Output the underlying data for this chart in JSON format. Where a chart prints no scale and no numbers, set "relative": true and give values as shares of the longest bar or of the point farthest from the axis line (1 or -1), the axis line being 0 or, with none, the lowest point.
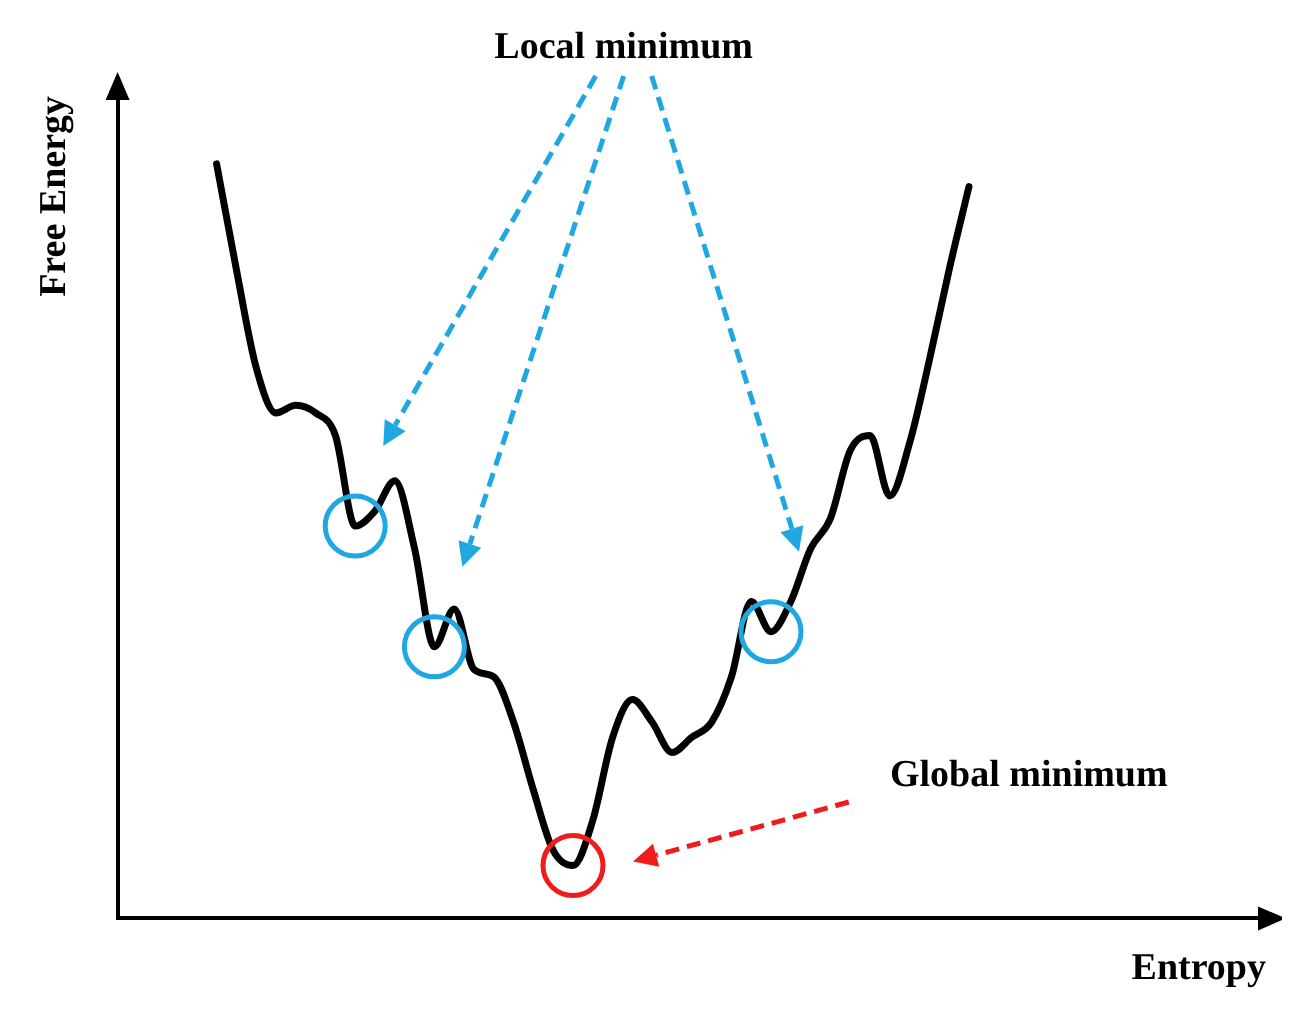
{
  "chart_data": {
    "type": "line",
    "relative": true,
    "xlabel": "Entropy",
    "ylabel": "Free Energy",
    "annotations": [
      "Local minimum",
      "Global minimum"
    ],
    "categories": [
      null,
      null,
      null,
      null,
      null,
      null,
      null,
      null,
      null,
      null,
      null,
      null,
      null,
      null,
      null,
      null,
      null,
      null,
      null,
      null,
      null,
      null,
      null,
      null,
      null,
      null,
      null,
      null,
      null,
      null,
      null,
      null,
      null,
      null,
      null,
      null,
      null,
      null,
      null
    ],
    "series": [
      {
        "color": "#000000",
        "values": [
          1.0,
          0.86,
          0.73,
          0.67,
          0.68,
          0.67,
          0.64,
          0.52,
          0.54,
          0.58,
          0.49,
          0.36,
          0.41,
          0.33,
          0.32,
          0.26,
          0.17,
          0.09,
          0.07,
          0.13,
          0.24,
          0.29,
          0.26,
          0.22,
          0.24,
          0.26,
          0.32,
          0.42,
          0.38,
          0.42,
          0.49,
          0.53,
          0.62,
          0.64,
          0.56,
          0.63,
          0.74,
          0.86,
          0.97
        ]
      }
    ],
    "grid": false,
    "legend": false,
    "tick_labels": false,
    "marker": "none",
    "line_style": "solid"
  }
}
